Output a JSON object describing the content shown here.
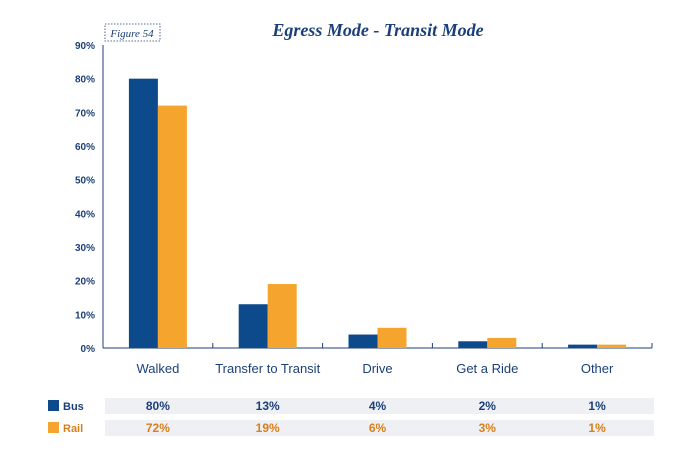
{
  "figure_label": "Figure 54",
  "colors": {
    "bus": "#0c4a8c",
    "rail": "#f5a52e",
    "title": "#1b3f7a",
    "axis": "#1b3f7a",
    "tick": "#1b3f7a",
    "category": "#1b3f7a",
    "table_bg": "#eef0f3",
    "bus_text": "#1b3f7a",
    "rail_text": "#d97f1a"
  },
  "chart_data": {
    "type": "bar",
    "title": "Egress Mode - Transit Mode",
    "xlabel": "",
    "ylabel": "",
    "ylim": [
      0,
      90
    ],
    "yticks": [
      "0%",
      "10%",
      "20%",
      "30%",
      "40%",
      "50%",
      "60%",
      "70%",
      "80%",
      "90%"
    ],
    "categories": [
      "Walked",
      "Transfer to Transit",
      "Drive",
      "Get a Ride",
      "Other"
    ],
    "series": [
      {
        "name": "Bus",
        "values": [
          80,
          13,
          4,
          2,
          1
        ],
        "labels": [
          "80%",
          "13%",
          "4%",
          "2%",
          "1%"
        ]
      },
      {
        "name": "Rail",
        "values": [
          72,
          19,
          6,
          3,
          1
        ],
        "labels": [
          "72%",
          "19%",
          "6%",
          "3%",
          "1%"
        ]
      }
    ],
    "legend": "bottom-left table"
  }
}
